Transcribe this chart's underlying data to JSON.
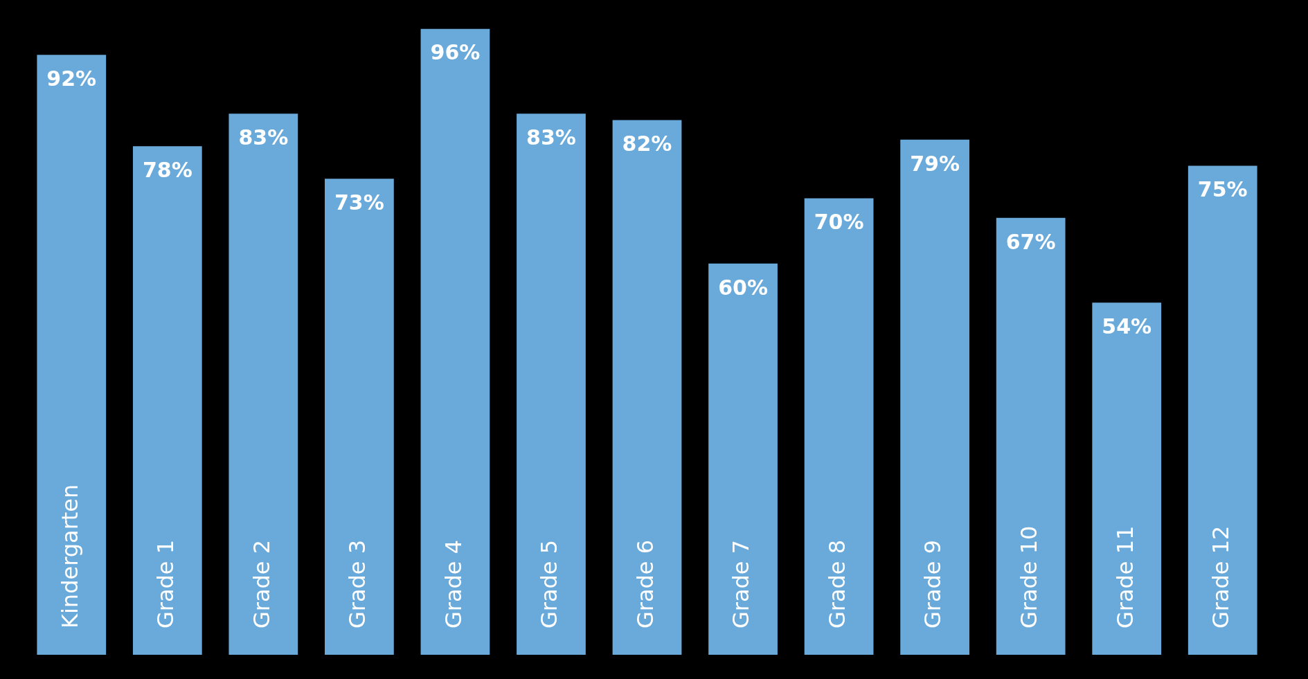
{
  "chart_data": {
    "type": "bar",
    "categories": [
      "Kindergarten",
      "Grade 1",
      "Grade 2",
      "Grade 3",
      "Grade 4",
      "Grade 5",
      "Grade 6",
      "Grade 7",
      "Grade 8",
      "Grade 9",
      "Grade 10",
      "Grade 11",
      "Grade 12"
    ],
    "values": [
      92,
      78,
      83,
      73,
      96,
      83,
      82,
      60,
      70,
      79,
      67,
      54,
      75
    ],
    "value_labels": [
      "92%",
      "78%",
      "83%",
      "73%",
      "96%",
      "83%",
      "82%",
      "60%",
      "70%",
      "79%",
      "67%",
      "54%",
      "75%"
    ],
    "color": "#6aaadb",
    "tick_labels": "x",
    "legend": false
  }
}
